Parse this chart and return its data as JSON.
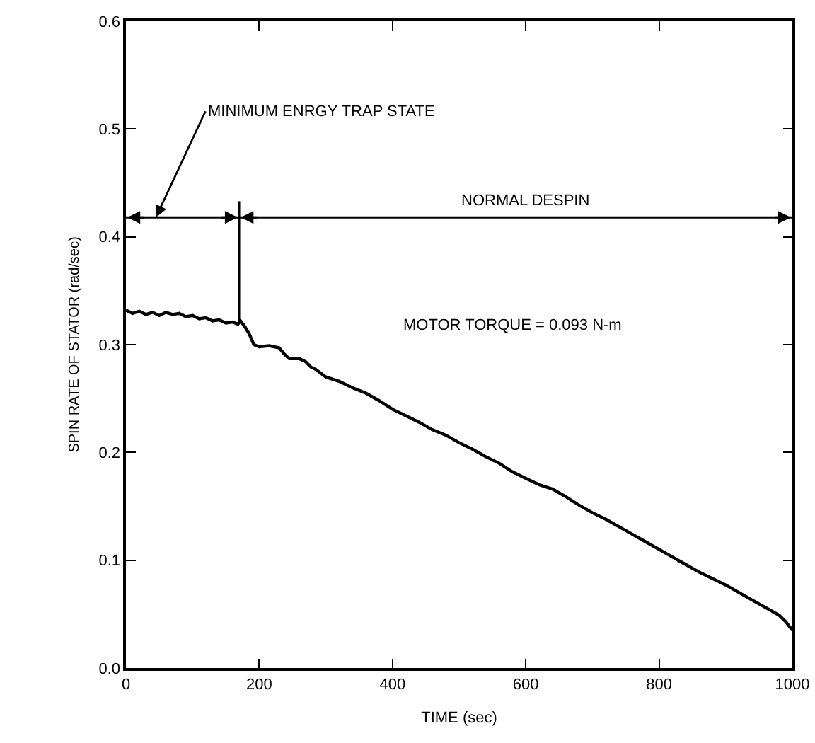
{
  "chart_data": {
    "type": "line",
    "xlabel": "TIME (sec)",
    "ylabel": "SPIN RATE OF STATOR (rad/sec)",
    "x": [
      0,
      10,
      20,
      30,
      40,
      50,
      60,
      70,
      80,
      90,
      100,
      110,
      120,
      130,
      140,
      150,
      160,
      168,
      172,
      178,
      185,
      192,
      200,
      215,
      230,
      238,
      245,
      260,
      270,
      278,
      285,
      300,
      320,
      340,
      360,
      380,
      400,
      420,
      440,
      460,
      480,
      500,
      520,
      540,
      560,
      580,
      600,
      620,
      640,
      660,
      680,
      700,
      720,
      740,
      760,
      780,
      800,
      820,
      840,
      860,
      880,
      900,
      920,
      940,
      960,
      980,
      990,
      1000
    ],
    "series": [
      {
        "color": "#000000",
        "values": [
          0.332,
          0.329,
          0.331,
          0.328,
          0.33,
          0.327,
          0.33,
          0.328,
          0.329,
          0.326,
          0.327,
          0.324,
          0.325,
          0.322,
          0.323,
          0.32,
          0.321,
          0.319,
          0.322,
          0.317,
          0.31,
          0.3,
          0.298,
          0.299,
          0.297,
          0.291,
          0.287,
          0.287,
          0.284,
          0.279,
          0.277,
          0.27,
          0.266,
          0.26,
          0.255,
          0.248,
          0.24,
          0.234,
          0.228,
          0.221,
          0.216,
          0.209,
          0.203,
          0.196,
          0.19,
          0.182,
          0.176,
          0.17,
          0.166,
          0.159,
          0.151,
          0.144,
          0.138,
          0.131,
          0.124,
          0.117,
          0.11,
          0.103,
          0.096,
          0.089,
          0.083,
          0.077,
          0.07,
          0.063,
          0.056,
          0.049,
          0.043,
          0.035
        ]
      }
    ],
    "xlim": [
      0,
      1000
    ],
    "xticks": [
      0,
      200,
      400,
      600,
      800,
      1000
    ],
    "ylim": [
      0,
      0.6
    ],
    "yticks": [
      {
        "value": 0,
        "label": "0.0"
      },
      0.1,
      0.2,
      0.3,
      0.4,
      0.5,
      0.6
    ],
    "marker": "none",
    "line_style": "solid",
    "ref_lines": [
      {
        "axis": "y",
        "value": 0.418,
        "label": "NORMAL DESPIN"
      },
      {
        "axis": "x",
        "value": 170,
        "label": null
      }
    ],
    "annotations": [
      {
        "text": "MINIMUM ENRGY TRAP STATE",
        "x": 45,
        "y": 0.418
      },
      "MOTOR TORQUE = 0.093 N-m"
    ]
  }
}
